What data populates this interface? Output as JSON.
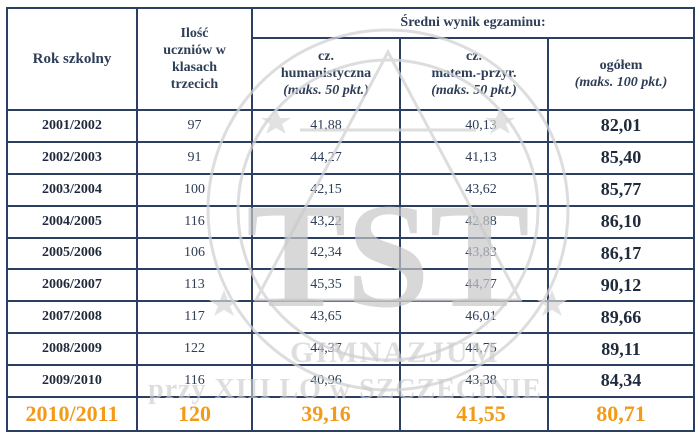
{
  "table": {
    "headers": {
      "year": "Rok szkolny",
      "count_lines": [
        "Ilość",
        "uczniów w",
        "klasach",
        "trzecich"
      ],
      "avg_group": "Średni wynik egzaminu:",
      "humanities_lines": [
        "cz.",
        "humanistyczna"
      ],
      "humanities_max": "(maks. 50 pkt.)",
      "math_lines": [
        "cz.",
        "matem.-przyr."
      ],
      "math_max": "(maks. 50 pkt.)",
      "total": "ogółem",
      "total_max": "(maks. 100 pkt.)"
    },
    "rows": [
      {
        "year": "2001/2002",
        "count": "97",
        "hum": "41,88",
        "math": "40,13",
        "total": "82,01"
      },
      {
        "year": "2002/2003",
        "count": "91",
        "hum": "44,27",
        "math": "41,13",
        "total": "85,40"
      },
      {
        "year": "2003/2004",
        "count": "100",
        "hum": "42,15",
        "math": "43,62",
        "total": "85,77"
      },
      {
        "year": "2004/2005",
        "count": "116",
        "hum": "43,22",
        "math": "42,88",
        "total": "86,10"
      },
      {
        "year": "2005/2006",
        "count": "106",
        "hum": "42,34",
        "math": "43,83",
        "total": "86,17"
      },
      {
        "year": "2006/2007",
        "count": "113",
        "hum": "45,35",
        "math": "44,77",
        "total": "90,12"
      },
      {
        "year": "2007/2008",
        "count": "117",
        "hum": "43,65",
        "math": "46,01",
        "total": "89,66"
      },
      {
        "year": "2008/2009",
        "count": "122",
        "hum": "44,37",
        "math": "44,75",
        "total": "89,11"
      },
      {
        "year": "2009/2010",
        "count": "116",
        "hum": "40,96",
        "math": "43,38",
        "total": "84,34"
      },
      {
        "year": "2010/2011",
        "count": "120",
        "hum": "39,16",
        "math": "41,55",
        "total": "80,71"
      }
    ]
  },
  "watermark": {
    "logo_text": "TST",
    "line1": "GIMNAZJUM",
    "line2": "przy XIII LO w SZCZECINIE"
  },
  "colors": {
    "border": "#2b3f63",
    "text": "#2e3e57",
    "highlight": "#f39a17",
    "watermark": "#cfcfcf"
  }
}
